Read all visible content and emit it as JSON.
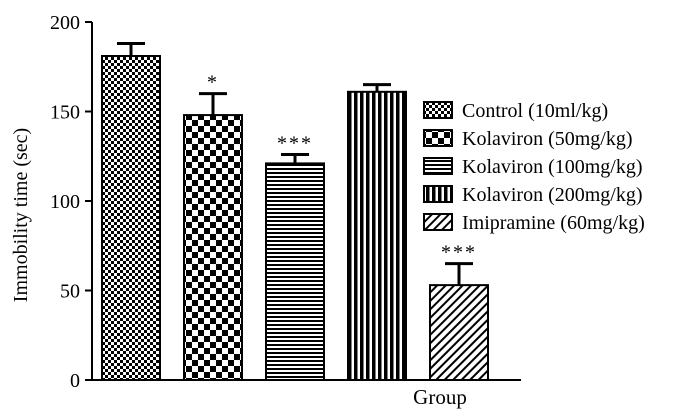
{
  "chart_data": {
    "type": "bar",
    "xlabel": "Group",
    "ylabel": "Immobility time (sec)",
    "ylim": [
      0,
      200
    ],
    "yticks": [
      "0",
      "50",
      "100",
      "150",
      "200"
    ],
    "error_bars": true,
    "series": [
      {
        "name": "Control (10ml/kg)",
        "value": 181,
        "error": 7,
        "significance": "",
        "pattern": "checker-small"
      },
      {
        "name": "Kolaviron (50mg/kg)",
        "value": 148,
        "error": 12,
        "significance": "*",
        "pattern": "checker-large"
      },
      {
        "name": "Kolaviron (100mg/kg)",
        "value": 121,
        "error": 5,
        "significance": "***",
        "pattern": "horizontal-stripes"
      },
      {
        "name": "Kolaviron (200mg/kg)",
        "value": 161,
        "error": 4,
        "significance": "",
        "pattern": "vertical-stripes"
      },
      {
        "name": "Imipramine (60mg/kg)",
        "value": 53,
        "error": 12,
        "significance": "***",
        "pattern": "diagonal-hatch"
      }
    ],
    "legend_position": "right"
  }
}
